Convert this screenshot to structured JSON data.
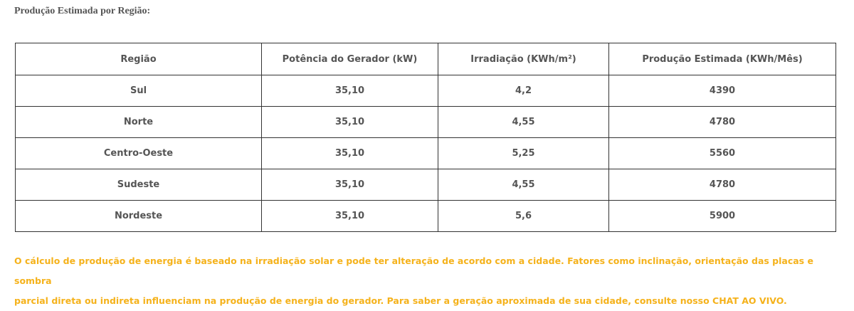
{
  "title": "Produção Estimada por Região:",
  "table": {
    "headers": [
      "Região",
      "Potência do Gerador (kW)",
      "Irradiação (KWh/m²)",
      "Produção Estimada (KWh/Mês)"
    ],
    "rows": [
      [
        "Sul",
        "35,10",
        "4,2",
        "4390"
      ],
      [
        "Norte",
        "35,10",
        "4,55",
        "4780"
      ],
      [
        "Centro-Oeste",
        "35,10",
        "5,25",
        "5560"
      ],
      [
        "Sudeste",
        "35,10",
        "4,55",
        "4780"
      ],
      [
        "Nordeste",
        "35,10",
        "5,6",
        "5900"
      ]
    ]
  },
  "note": {
    "line1": "O cálculo de produção de energia é baseado na irradiação solar e pode ter alteração de acordo com a cidade. Fatores como inclinação, orientação das placas e sombra",
    "line2": "parcial direta ou indireta influenciam na produção de energia do gerador. Para saber a geração aproximada de sua cidade, consulte nosso CHAT AO VIVO."
  },
  "colors": {
    "text": "#555555",
    "border": "#333333",
    "note": "#f5b21b"
  }
}
